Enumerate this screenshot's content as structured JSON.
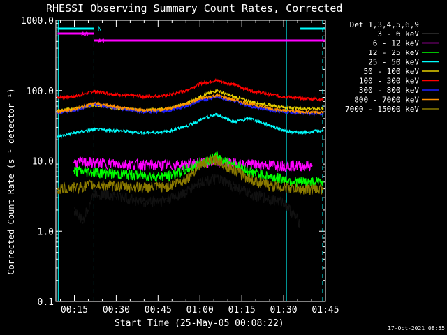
{
  "chart_data": {
    "type": "line",
    "title": "RHESSI Observing Summary Count Rates, Corrected",
    "xlabel": "Start Time (25-May-05 00:08:22)",
    "ylabel": "Corrected Count Rate (s⁻¹ detector⁻¹)",
    "timestamp": "17-Oct-2021 08:55",
    "y_scale": "log",
    "ylim": [
      0.1,
      1000
    ],
    "y_ticks": [
      "0.1",
      "1.0",
      "10.0",
      "100.0",
      "1000.0"
    ],
    "xlim_minutes": [
      9,
      46
    ],
    "x_ticks": [
      "00:15",
      "00:30",
      "00:45",
      "01:00",
      "01:15",
      "01:30",
      "01:45"
    ],
    "legend_title": "Det 1,3,4,5,6,9",
    "legend_position": "right",
    "legend": [
      {
        "label": "3 - 6 keV",
        "color": "#000000"
      },
      {
        "label": "6 - 12 keV",
        "color": "#ff00ff"
      },
      {
        "label": "12 - 25 keV",
        "color": "#00ff00"
      },
      {
        "label": "25 - 50 keV",
        "color": "#00ffff"
      },
      {
        "label": "50 - 100 keV",
        "color": "#e6d000"
      },
      {
        "label": "100 - 300 keV",
        "color": "#ff0000"
      },
      {
        "label": "300 - 800 keV",
        "color": "#2020ff"
      },
      {
        "label": "800 - 7000 keV",
        "color": "#ff9000"
      },
      {
        "label": "7000 - 15000 keV",
        "color": "#8b7a00"
      }
    ],
    "state_bars": [
      {
        "label": "N",
        "color": "#00ffff",
        "segments": [
          [
            9,
            22
          ],
          [
            96,
            105
          ]
        ]
      },
      {
        "label": "A0",
        "color": "#ff00ff",
        "segments": [
          [
            9,
            22
          ]
        ]
      },
      {
        "label": "A1",
        "color": "#ff00ff",
        "segments": [
          [
            22,
            105
          ]
        ]
      }
    ],
    "vertical_lines": [
      {
        "time": 9.2,
        "style": "solid",
        "color": "#00ffff"
      },
      {
        "time": 22,
        "style": "dashed",
        "color": "#00ffff"
      },
      {
        "time": 91,
        "style": "solid",
        "color": "#00ffff"
      },
      {
        "time": 104,
        "style": "dashed",
        "color": "#00ffff"
      }
    ],
    "series": [
      {
        "name": "100 - 300 keV",
        "color": "#ff0000",
        "t": [
          9,
          15,
          22,
          30,
          40,
          48,
          55,
          60,
          66,
          72,
          78,
          85,
          90,
          96,
          104
        ],
        "y": [
          80,
          82,
          98,
          88,
          82,
          85,
          100,
          125,
          140,
          122,
          100,
          88,
          82,
          78,
          75
        ]
      },
      {
        "name": "50 - 100 keV",
        "color": "#e6d000",
        "t": [
          9,
          15,
          22,
          30,
          40,
          48,
          55,
          60,
          66,
          72,
          78,
          85,
          90,
          96,
          104
        ],
        "y": [
          52,
          55,
          62,
          56,
          52,
          55,
          65,
          82,
          100,
          82,
          70,
          62,
          58,
          56,
          55
        ]
      },
      {
        "name": "300 - 800 keV",
        "color": "#2020ff",
        "t": [
          9,
          15,
          22,
          30,
          40,
          48,
          55,
          60,
          66,
          72,
          78,
          85,
          90,
          96,
          104
        ],
        "y": [
          48,
          52,
          64,
          56,
          50,
          51,
          60,
          72,
          82,
          72,
          60,
          53,
          50,
          48,
          47
        ]
      },
      {
        "name": "800 - 7000 keV",
        "color": "#ff9000",
        "t": [
          9,
          15,
          22,
          30,
          40,
          48,
          55,
          60,
          66,
          72,
          78,
          85,
          90,
          96,
          104
        ],
        "y": [
          50,
          54,
          66,
          58,
          52,
          54,
          64,
          76,
          86,
          74,
          64,
          56,
          52,
          50,
          49
        ]
      },
      {
        "name": "25 - 50 keV",
        "color": "#00ffff",
        "t": [
          9,
          15,
          22,
          30,
          40,
          48,
          55,
          60,
          66,
          72,
          78,
          85,
          90,
          96,
          104
        ],
        "y": [
          22,
          25,
          28,
          27,
          25,
          26,
          31,
          38,
          46,
          36,
          40,
          32,
          27,
          25,
          27
        ]
      },
      {
        "name": "6 - 12 keV",
        "color": "#ff00ff",
        "t": [
          15,
          22,
          30,
          40,
          48,
          55,
          60,
          66,
          72,
          78,
          85,
          90,
          96,
          100
        ],
        "y": [
          9.5,
          9.5,
          9.2,
          8.8,
          8.7,
          8.9,
          9.3,
          9.6,
          9.3,
          9.0,
          8.8,
          8.7,
          8.6,
          8.5
        ]
      },
      {
        "name": "12 - 25 keV",
        "color": "#00ff00",
        "t": [
          15,
          22,
          30,
          40,
          48,
          55,
          60,
          66,
          72,
          78,
          85,
          90,
          96,
          104
        ],
        "y": [
          7.2,
          7.0,
          6.6,
          6.2,
          6.0,
          7.5,
          9.5,
          11.5,
          9.0,
          7.0,
          6.0,
          5.5,
          5.0,
          5.0
        ]
      },
      {
        "name": "7000 - 15000 keV",
        "color": "#8b7a00",
        "t": [
          9,
          15,
          22,
          30,
          40,
          48,
          55,
          60,
          66,
          72,
          78,
          85,
          90,
          96,
          104
        ],
        "y": [
          4.0,
          4.2,
          4.6,
          4.4,
          4.2,
          4.3,
          5.5,
          9.0,
          10.5,
          7.5,
          5.5,
          4.5,
          4.2,
          4.0,
          4.0
        ]
      },
      {
        "name": "3 - 6 keV",
        "color": "#000000",
        "t": [
          15,
          18,
          22,
          30,
          40,
          48,
          55,
          60,
          66,
          72,
          78,
          85,
          90,
          96
        ],
        "y": [
          2.0,
          1.4,
          3.5,
          3.2,
          2.6,
          2.8,
          3.6,
          5.0,
          5.6,
          4.4,
          3.4,
          2.9,
          2.6,
          1.3
        ]
      }
    ]
  }
}
